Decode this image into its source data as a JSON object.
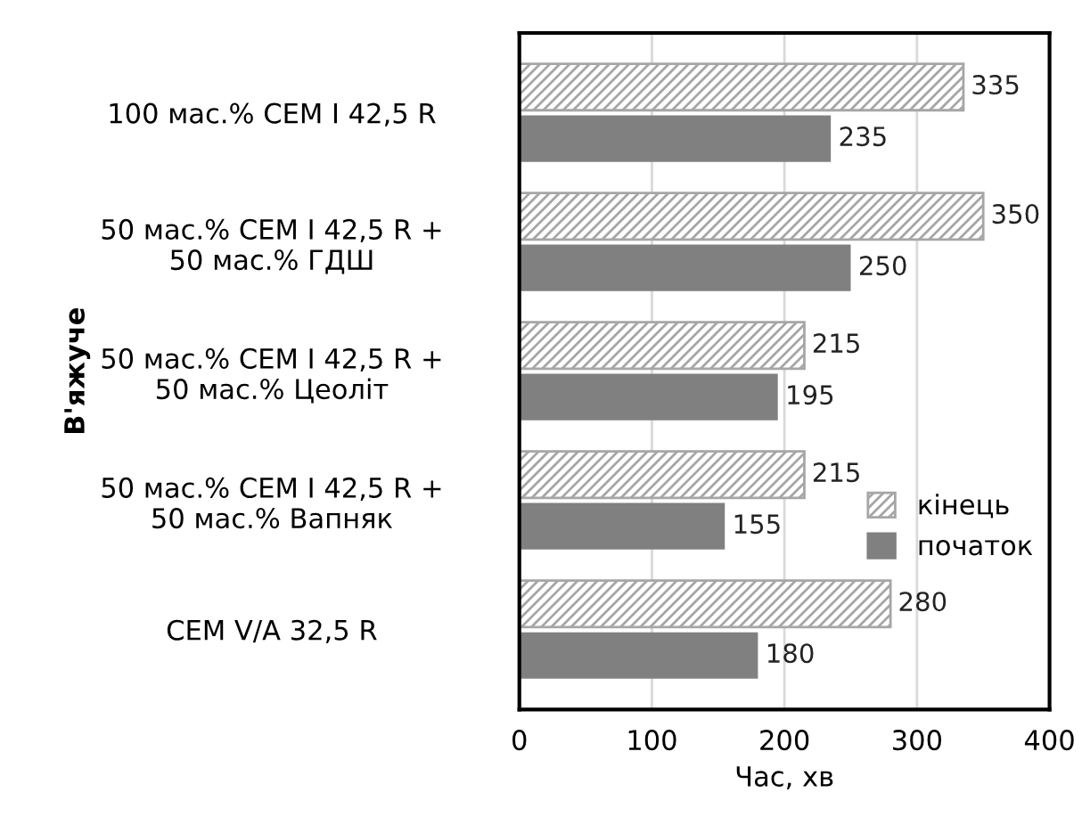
{
  "chart_data": {
    "type": "bar",
    "orientation": "horizontal",
    "categories": [
      "100 мас.% CEM I 42,5 R",
      "50 мас.% CEM I 42,5 R +\n50 мас.% ГДШ",
      "50 мас.% CEM I 42,5 R +\n50 мас.% Цеоліт",
      "50 мас.% CEM I 42,5 R +\n50 мас.% Вапняк",
      "CEM V/A 32,5 R"
    ],
    "series": [
      {
        "name": "кінець",
        "color": "#a6a6a6",
        "values": [
          335,
          350,
          215,
          215,
          280
        ]
      },
      {
        "name": "початок",
        "color": "#808080",
        "values": [
          235,
          250,
          195,
          155,
          180
        ]
      }
    ],
    "xlabel": "Час, хв",
    "ylabel": "В'яжуче",
    "xlim": [
      0,
      400
    ],
    "xticks": [
      0,
      100,
      200,
      300,
      400
    ],
    "grid": "x",
    "legend": "right",
    "data_labels": true
  }
}
